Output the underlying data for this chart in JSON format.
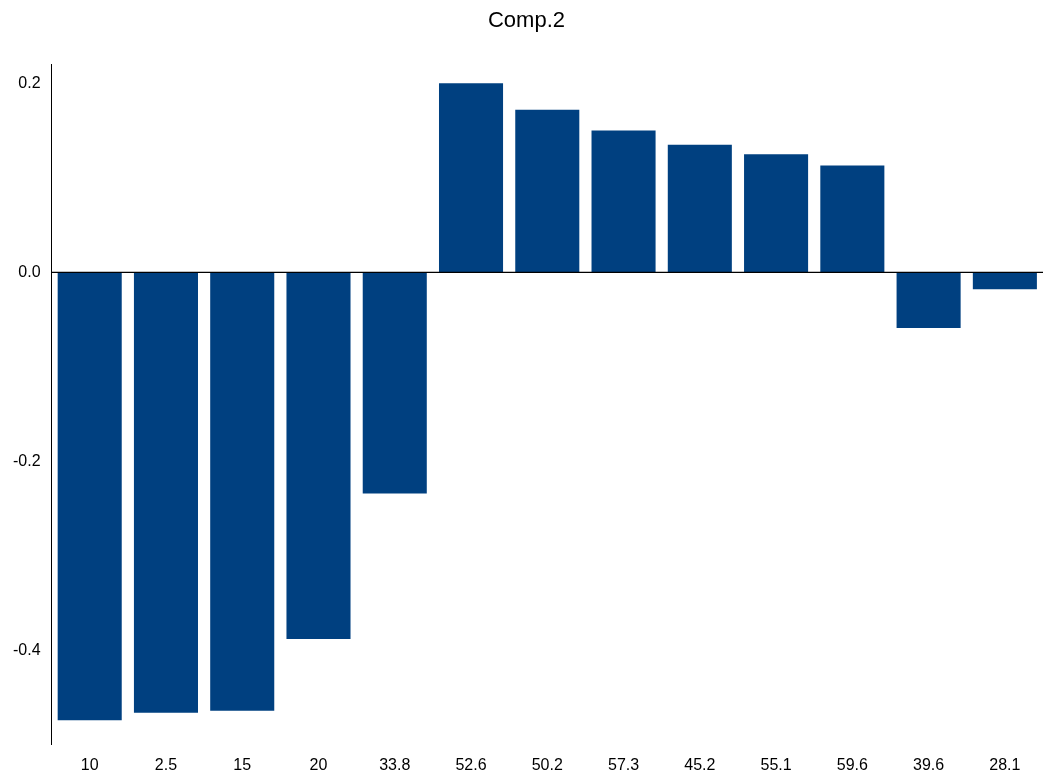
{
  "chart_data": {
    "type": "bar",
    "title": "Comp.2",
    "categories": [
      "10",
      "2.5",
      "15",
      "20",
      "33.8",
      "52.6",
      "50.2",
      "57.3",
      "45.2",
      "55.1",
      "59.6",
      "39.6",
      "28.1"
    ],
    "values": [
      -0.474,
      -0.466,
      -0.464,
      -0.388,
      -0.234,
      0.2,
      0.172,
      0.15,
      0.135,
      0.125,
      0.113,
      -0.059,
      -0.018
    ],
    "color": "#004080",
    "ylim": [
      -0.5,
      0.22
    ],
    "yticks": [
      {
        "value": -0.4,
        "label": "-0.4"
      },
      {
        "value": -0.2,
        "label": "-0.2"
      },
      {
        "value": 0,
        "label": "0.0"
      },
      {
        "value": 0.2,
        "label": "0.2"
      }
    ],
    "ref_lines": [
      {
        "axis": "y",
        "value": 0,
        "color": "#000000"
      }
    ],
    "grid": false,
    "legend": false
  }
}
